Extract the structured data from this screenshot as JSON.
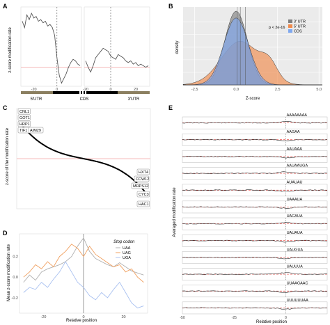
{
  "chart_data": [
    {
      "panel": "A",
      "type": "line",
      "ylabel": "z-score modification rate",
      "xlim": [
        -30,
        30
      ],
      "ylim": [
        -0.6,
        1.9
      ],
      "x_ticks": [
        -20,
        0,
        -20,
        0,
        20
      ],
      "region_labels": [
        "5'UTR",
        "CDS",
        "3'UTR"
      ],
      "segments": [
        {
          "x": [
            -30,
            -28,
            -26,
            -24,
            -22,
            -20,
            -18,
            -16,
            -14,
            -12,
            -10,
            -8,
            -6,
            -4,
            -2,
            0,
            2,
            4,
            6,
            8,
            10,
            12,
            14,
            16,
            18,
            20
          ],
          "y": [
            1.45,
            1.25,
            1.65,
            1.5,
            1.7,
            1.55,
            1.6,
            1.45,
            1.5,
            1.4,
            1.45,
            1.3,
            1.35,
            1.25,
            1.0,
            0.3,
            -0.25,
            -0.5,
            -0.35,
            -0.2,
            0.0,
            0.15,
            0.25,
            0.2,
            0.1,
            0.05
          ]
        },
        {
          "x": [
            -20,
            -18,
            -16,
            -14,
            -12,
            -10,
            -8,
            -6,
            -4,
            -2,
            0,
            2,
            4,
            6,
            8,
            10,
            12,
            14,
            16,
            18,
            20,
            22,
            24,
            26,
            28,
            30
          ],
          "y": [
            0.2,
            0.0,
            -0.15,
            0.05,
            0.3,
            0.4,
            0.5,
            0.6,
            0.55,
            0.5,
            0.35,
            0.3,
            0.25,
            0.4,
            0.35,
            0.3,
            0.2,
            0.15,
            0.2,
            0.1,
            0.15,
            0.05,
            0.1,
            0.05,
            0.0,
            0.05
          ]
        }
      ]
    },
    {
      "panel": "B",
      "type": "area",
      "xlabel": "Z-score",
      "ylabel": "density",
      "xlim": [
        -3.2,
        5.2
      ],
      "ylim": [
        0,
        0.62
      ],
      "x_ticks": [
        -2.5,
        0.0,
        2.5,
        5.0
      ],
      "annotation": "p < 2e-16",
      "series": [
        {
          "name": "3' UTR",
          "color": "#7f7f7f",
          "mean": 0.0,
          "sd": 0.68
        },
        {
          "name": "5' UTR",
          "color": "#f08a4b",
          "mean": 0.25,
          "sd": 1.15
        },
        {
          "name": "CDS",
          "color": "#7fa8ef",
          "mean": 0.0,
          "sd": 0.75
        }
      ],
      "vlines": [
        0.05,
        0.25,
        0.55
      ]
    },
    {
      "panel": "C",
      "type": "line",
      "ylabel": "z-score of the modification rate",
      "ylim": [
        -3.5,
        3.5
      ],
      "labels_top": [
        "CNL1",
        "GOT1",
        "HRP1",
        "TIF1",
        "AIM29"
      ],
      "labels_bottom": [
        "HXT4",
        "CCW12",
        "MRPS12",
        "CYC3",
        "HAC1"
      ]
    },
    {
      "panel": "D",
      "type": "line",
      "xlabel": "Relative position",
      "ylabel": "Mean z-score modification rate",
      "xlim": [
        -32,
        32
      ],
      "ylim": [
        -0.35,
        0.42
      ],
      "x_ticks": [
        -20,
        0,
        20
      ],
      "y_ticks": [
        -0.2,
        0.0,
        0.2
      ],
      "legend_title": "Stop codon",
      "x": [
        -30,
        -27,
        -24,
        -21,
        -18,
        -15,
        -12,
        -9,
        -6,
        -3,
        0,
        3,
        6,
        9,
        12,
        15,
        18,
        21,
        24,
        27,
        30
      ],
      "series": [
        {
          "name": "UAA",
          "color": "#b0b0b0",
          "values": [
            -0.05,
            0.02,
            -0.03,
            0.05,
            0.08,
            0.1,
            0.12,
            0.15,
            0.2,
            0.3,
            0.38,
            0.25,
            0.18,
            0.15,
            0.12,
            0.1,
            0.14,
            0.1,
            0.06,
            0.04,
            0.02
          ]
        },
        {
          "name": "UAG",
          "color": "#f0a060",
          "values": [
            0.0,
            0.05,
            0.12,
            0.08,
            0.15,
            0.1,
            0.2,
            0.25,
            0.32,
            0.28,
            0.2,
            0.3,
            0.22,
            0.18,
            0.14,
            0.1,
            0.12,
            0.05,
            0.08,
            0.0,
            -0.05
          ]
        },
        {
          "name": "UGA",
          "color": "#a8c0f0",
          "values": [
            -0.15,
            -0.1,
            -0.12,
            -0.05,
            -0.1,
            -0.02,
            0.05,
            0.15,
            0.05,
            -0.05,
            -0.1,
            -0.18,
            -0.22,
            -0.15,
            -0.2,
            -0.12,
            -0.05,
            -0.15,
            -0.25,
            -0.3,
            -0.28
          ]
        }
      ]
    },
    {
      "panel": "E",
      "type": "line",
      "xlabel": "Relative position",
      "ylabel": "Averaged modification rate",
      "xlim": [
        -50,
        20
      ],
      "x_ticks": [
        -50,
        -25,
        0,
        25
      ],
      "motifs": [
        "AAAAAAAA",
        "AAGAA",
        "AAUAAA",
        "AAUAAUGA",
        "AUAUAU",
        "UAAAUA",
        "UACAUA",
        "UAUAUA",
        "UAUGUA",
        "UAUUUA",
        "UUAAGAAC",
        "UUUUUUAA"
      ]
    }
  ]
}
